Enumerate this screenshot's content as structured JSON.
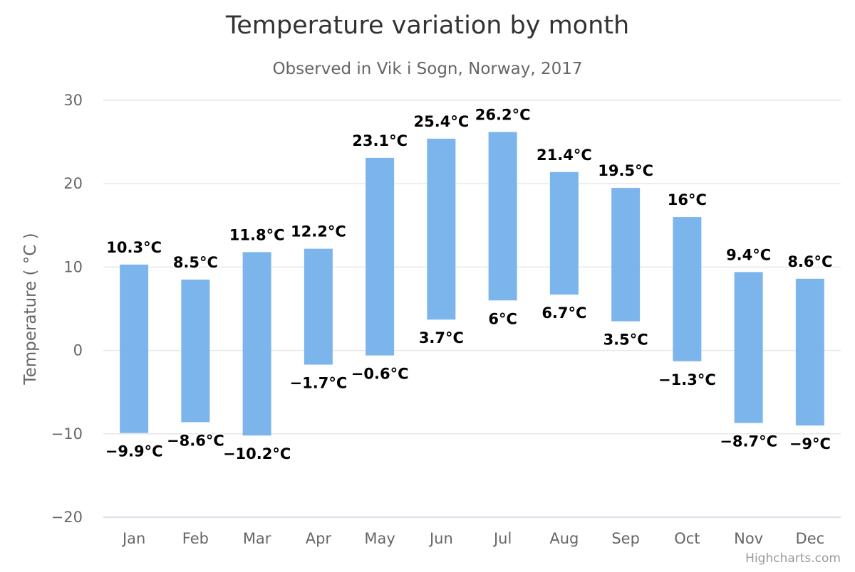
{
  "chart_data": {
    "type": "columnrange",
    "title": "Temperature variation by month",
    "subtitle": "Observed in Vik i Sogn, Norway, 2017",
    "xlabel": "",
    "ylabel": "Temperature ( °C )",
    "categories": [
      "Jan",
      "Feb",
      "Mar",
      "Apr",
      "May",
      "Jun",
      "Jul",
      "Aug",
      "Sep",
      "Oct",
      "Nov",
      "Dec"
    ],
    "series": [
      {
        "name": "Temperatures",
        "low": [
          -9.9,
          -8.6,
          -10.2,
          -1.7,
          -0.6,
          3.7,
          6.0,
          6.7,
          3.5,
          -1.3,
          -8.7,
          -9.0
        ],
        "high": [
          10.3,
          8.5,
          11.8,
          12.2,
          23.1,
          25.4,
          26.2,
          21.4,
          19.5,
          16.0,
          9.4,
          8.6
        ],
        "low_labels": [
          "−9.9°C",
          "−8.6°C",
          "−10.2°C",
          "−1.7°C",
          "−0.6°C",
          "3.7°C",
          "6°C",
          "6.7°C",
          "3.5°C",
          "−1.3°C",
          "−8.7°C",
          "−9°C"
        ],
        "high_labels": [
          "10.3°C",
          "8.5°C",
          "11.8°C",
          "12.2°C",
          "23.1°C",
          "25.4°C",
          "26.2°C",
          "21.4°C",
          "19.5°C",
          "16°C",
          "9.4°C",
          "8.6°C"
        ],
        "color": "#7cb5ec"
      }
    ],
    "ylim": [
      -20,
      30
    ],
    "yticks": [
      -20,
      -10,
      0,
      10,
      20,
      30
    ],
    "ytick_labels": [
      "−20",
      "−10",
      "0",
      "10",
      "20",
      "30"
    ],
    "grid": true,
    "legend": "none"
  },
  "credits": "Highcharts.com"
}
